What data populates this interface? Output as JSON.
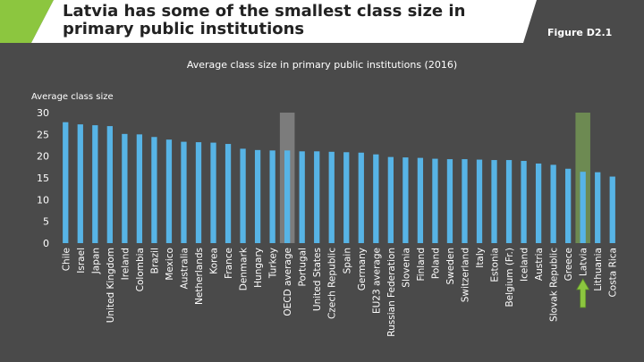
{
  "header": {
    "title": "Latvia has some of the smallest class size in primary public institutions",
    "figure_label": "Figure D2.1"
  },
  "colors": {
    "bar": "#57b4e6",
    "background": "#4a4a4a",
    "header_bg": "#ffffff",
    "header_green": "#8cc63f",
    "highlight_oecd": "#7c7c7c",
    "highlight_latvia": "#6d8a52",
    "arrow": "#8cc63f",
    "text": "#ffffff"
  },
  "chart_data": {
    "type": "bar",
    "title": "Average class size in primary public institutions (2016)",
    "ylabel": "Average class size",
    "xlabel": "",
    "ylim": [
      0,
      30
    ],
    "yticks": [
      0,
      5,
      10,
      15,
      20,
      25,
      30
    ],
    "highlighted": [
      "OECD average",
      "Latvia"
    ],
    "arrow_at": "Latvia",
    "categories": [
      "Chile",
      "Israel",
      "Japan",
      "United Kingdom",
      "Ireland",
      "Colombia",
      "Brazil",
      "Mexico",
      "Australia",
      "Netherlands",
      "Korea",
      "France",
      "Denmark",
      "Hungary",
      "Turkey",
      "OECD average",
      "Portugal",
      "United States",
      "Czech Republic",
      "Spain",
      "Germany",
      "EU23 average",
      "Russian Federation",
      "Slovenia",
      "Finland",
      "Poland",
      "Sweden",
      "Switzerland",
      "Italy",
      "Estonia",
      "Belgium (Fr.)",
      "Iceland",
      "Austria",
      "Slovak Republic",
      "Greece",
      "Latvia",
      "Lithuania",
      "Costa Rica"
    ],
    "values": [
      27.8,
      27.3,
      27.1,
      26.9,
      25.1,
      25.0,
      24.4,
      23.8,
      23.3,
      23.2,
      23.1,
      22.8,
      21.7,
      21.4,
      21.3,
      21.3,
      21.1,
      21.1,
      21.0,
      20.9,
      20.8,
      20.4,
      19.8,
      19.7,
      19.6,
      19.4,
      19.3,
      19.3,
      19.2,
      19.1,
      19.1,
      18.9,
      18.3,
      18.0,
      17.1,
      16.4,
      16.3,
      15.3
    ]
  }
}
